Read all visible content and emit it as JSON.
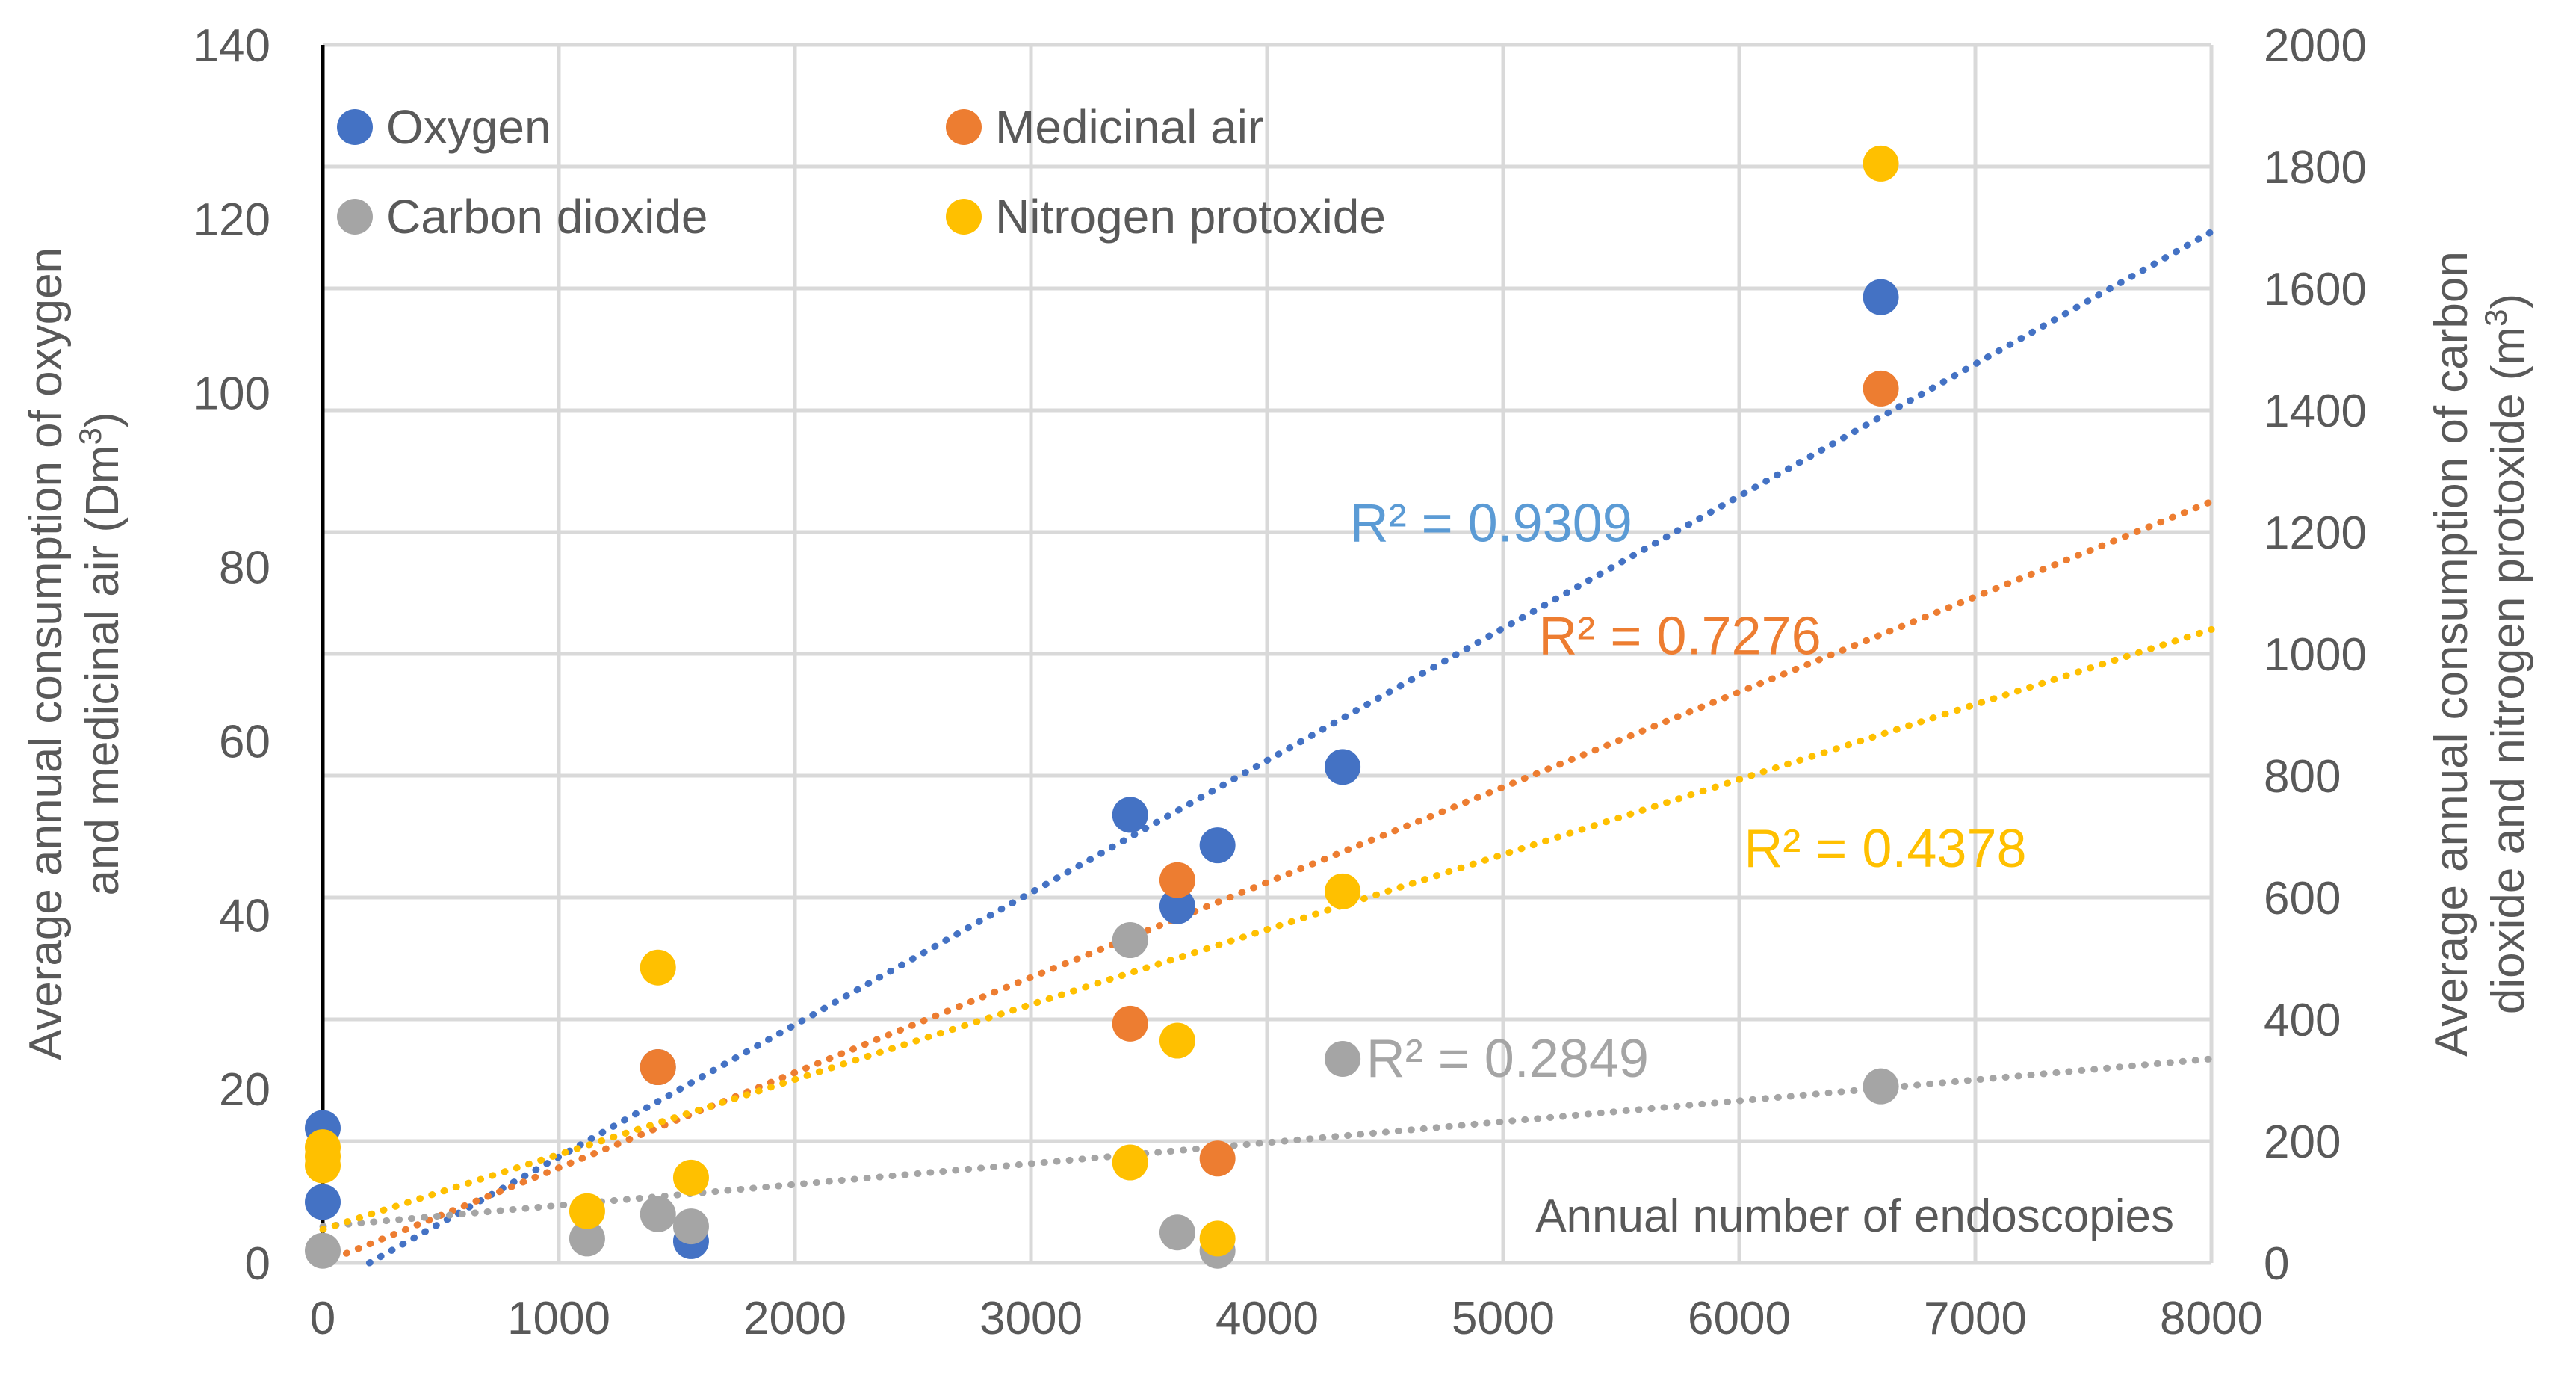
{
  "chart_data": {
    "type": "scatter",
    "title": "",
    "xlabel": "Annual number of endoscopies",
    "ylabel_left": "Average annual consumption of oxygen and medicinal air (Dm³)",
    "ylabel_left_lines": [
      "Average annual consumption of oxygen",
      "and medicinal air (Dm",
      "3",
      ")"
    ],
    "ylabel_right": "Average annual consumption of carbon dioxide and nitrogen protoxide (m³)",
    "ylabel_right_lines": [
      "Average annual consumption of carbon",
      "dioxide and nitrogen protoxide (m",
      "3",
      ")"
    ],
    "xlim": [
      0,
      8000
    ],
    "ylim_left": [
      0,
      140
    ],
    "ylim_right": [
      0,
      2000
    ],
    "x_ticks": [
      "0",
      "1000",
      "2000",
      "3000",
      "4000",
      "5000",
      "6000",
      "7000",
      "8000"
    ],
    "y_left_ticks": [
      "0",
      "20",
      "40",
      "60",
      "80",
      "100",
      "120",
      "140"
    ],
    "y_right_ticks": [
      "0",
      "200",
      "400",
      "600",
      "800",
      "1000",
      "1200",
      "1400",
      "1600",
      "1800",
      "2000"
    ],
    "grid": true,
    "legend_position": "top-left",
    "series": [
      {
        "name": "Oxygen",
        "axis": "left",
        "color": "#4472C4",
        "r2_color": "#5B9BD5",
        "points": [
          [
            0,
            15.5
          ],
          [
            0,
            7
          ],
          [
            1420,
            22.5
          ],
          [
            1560,
            2.5
          ],
          [
            3420,
            51.5
          ],
          [
            3620,
            41
          ],
          [
            3790,
            48
          ],
          [
            4320,
            57
          ],
          [
            6600,
            111
          ]
        ],
        "trend": {
          "x0": 0,
          "y0": -3,
          "x1": 8000,
          "y1": 118.5
        },
        "r2_label": "R² = 0.9309",
        "r2_anchor": [
          4350,
          85
        ]
      },
      {
        "name": "Medicinal air",
        "axis": "left",
        "color": "#ED7D31",
        "r2_color": "#ED7D31",
        "points": [
          [
            1420,
            22.5
          ],
          [
            3420,
            27.5
          ],
          [
            3620,
            44
          ],
          [
            3790,
            12
          ],
          [
            6600,
            100.5
          ]
        ],
        "trend": {
          "x0": 0,
          "y0": 0,
          "x1": 8000,
          "y1": 87.5
        },
        "r2_label": "R² = 0.7276",
        "r2_anchor": [
          5150,
          72
        ]
      },
      {
        "name": "Carbon dioxide",
        "axis": "right",
        "color": "#A5A5A5",
        "r2_color": "#A5A5A5",
        "points": [
          [
            0,
            20
          ],
          [
            1120,
            40
          ],
          [
            1420,
            80
          ],
          [
            1560,
            60
          ],
          [
            3420,
            530
          ],
          [
            3620,
            50
          ],
          [
            3790,
            20
          ],
          [
            4320,
            335
          ],
          [
            6600,
            290
          ]
        ],
        "trend": {
          "x0": 0,
          "y0": 60,
          "x1": 8000,
          "y1": 335
        },
        "r2_label": "R² = 0.2849",
        "r2_anchor": [
          4420,
          335
        ]
      },
      {
        "name": "Nitrogen protoxide",
        "axis": "right",
        "color": "#FFC000",
        "r2_color": "#FFC000",
        "points": [
          [
            0,
            190
          ],
          [
            0,
            175
          ],
          [
            0,
            160
          ],
          [
            1120,
            85
          ],
          [
            1420,
            485
          ],
          [
            1560,
            140
          ],
          [
            3420,
            165
          ],
          [
            3620,
            365
          ],
          [
            3790,
            40
          ],
          [
            4320,
            610
          ],
          [
            6600,
            1805
          ]
        ],
        "trend": {
          "x0": 0,
          "y0": 55,
          "x1": 8000,
          "y1": 1040
        },
        "r2_label": "R² = 0.4378",
        "r2_anchor": [
          6020,
          680
        ]
      }
    ]
  }
}
